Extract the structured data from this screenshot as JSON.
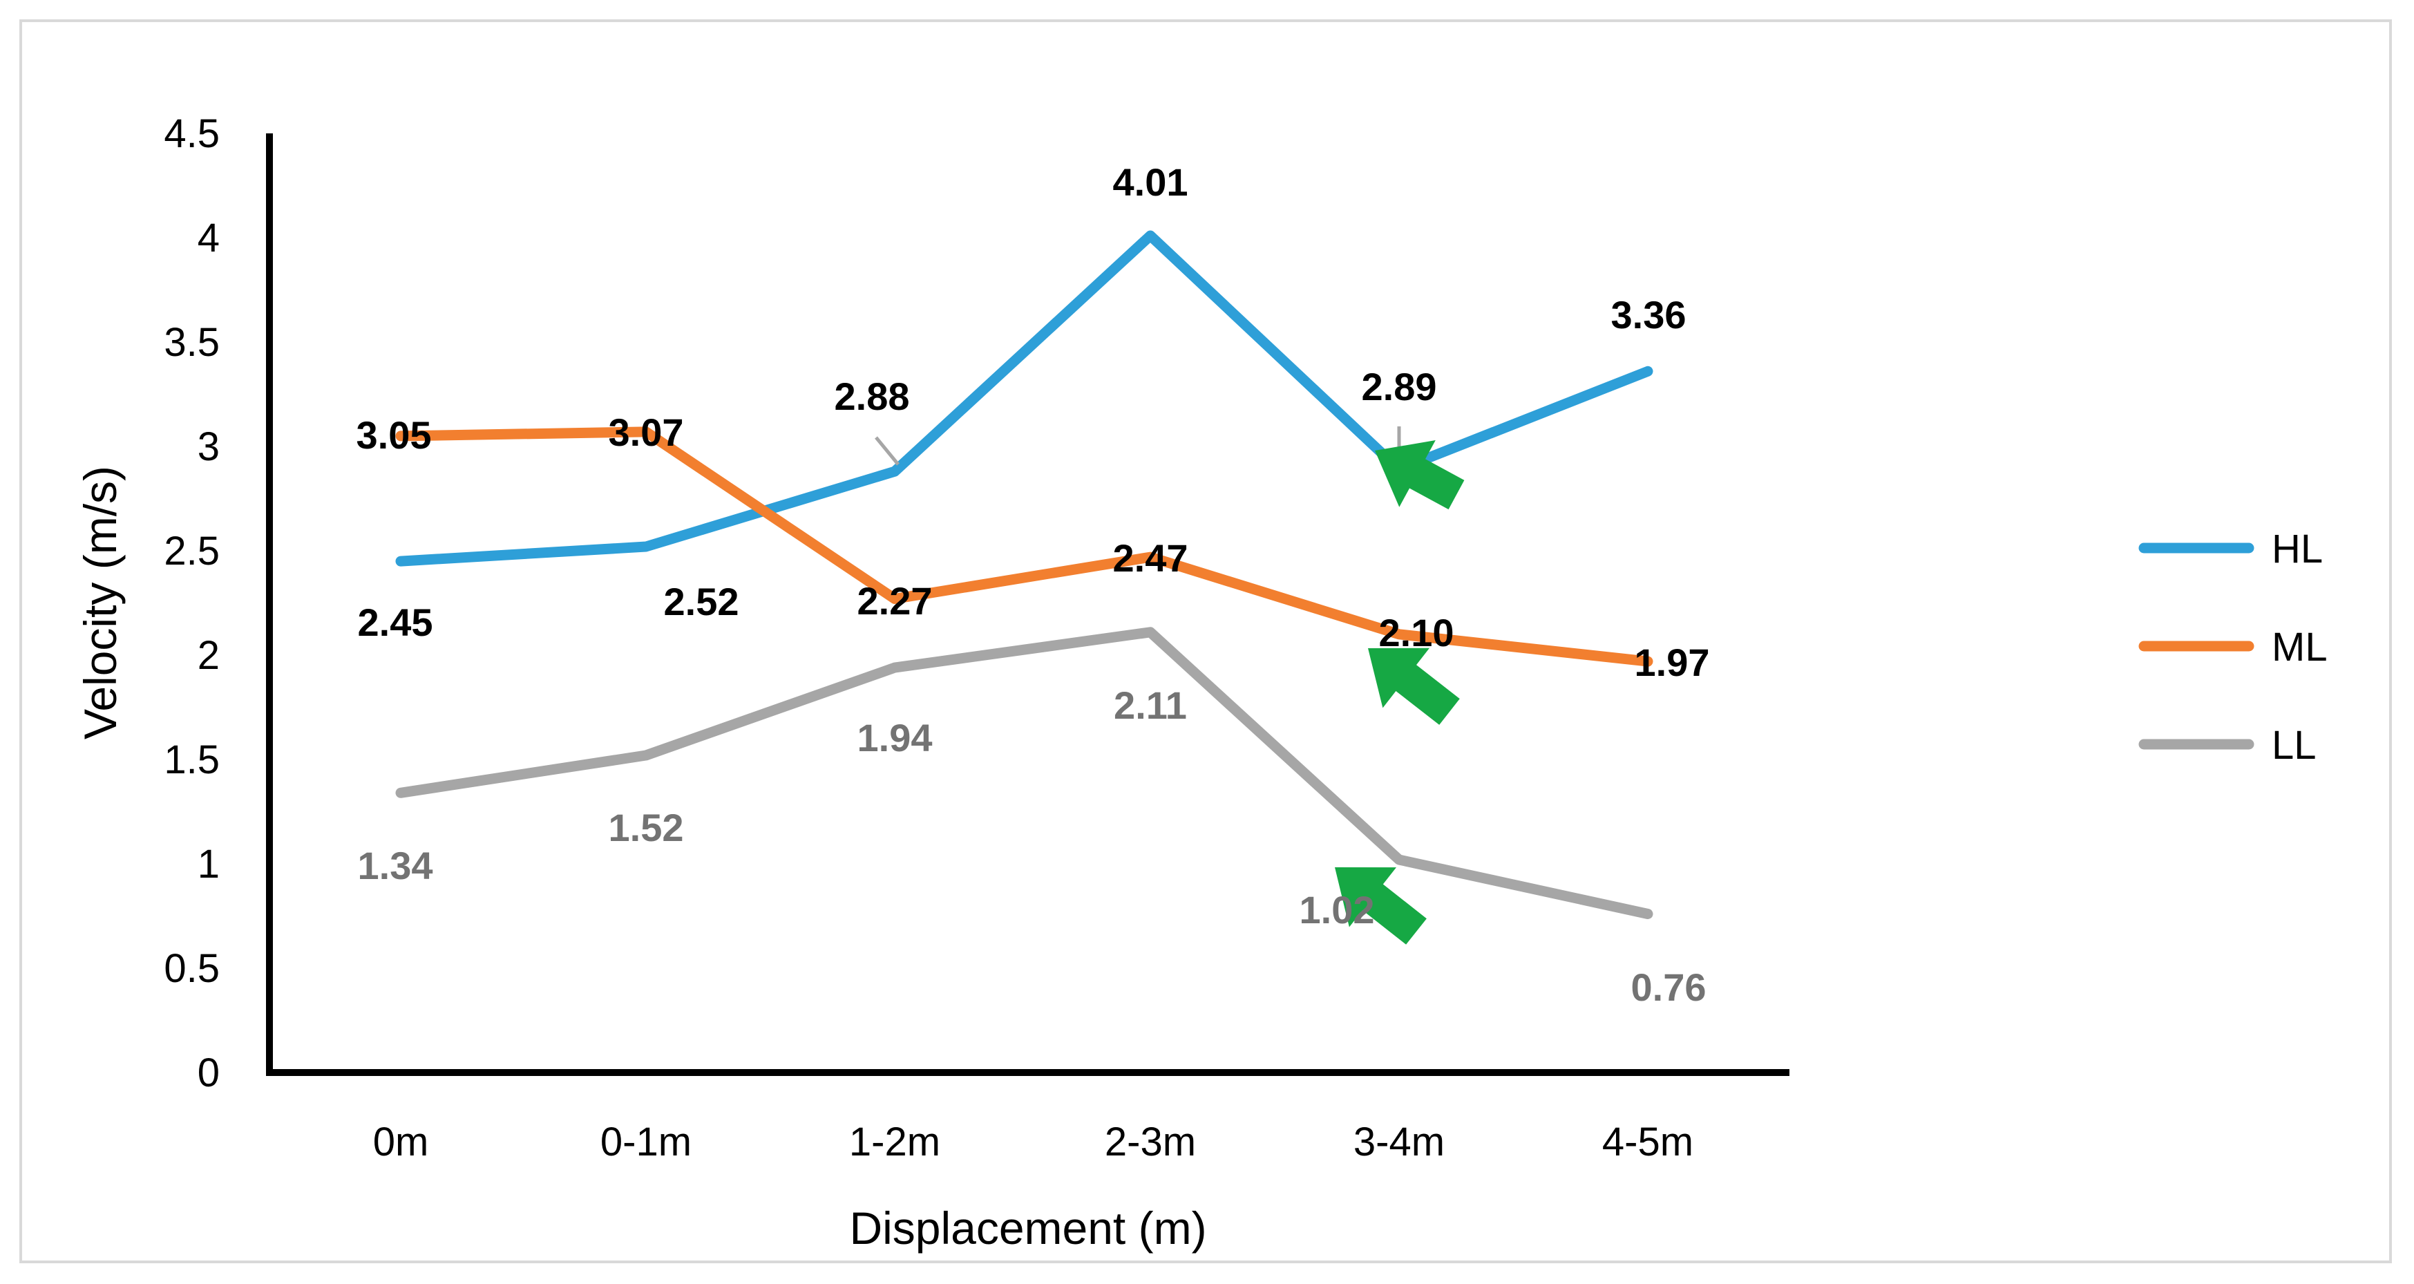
{
  "chart_data": {
    "type": "line",
    "xlabel": "Displacement (m)",
    "ylabel": "Velocity (m/s)",
    "categories": [
      "0m",
      "0-1m",
      "1-2m",
      "2-3m",
      "3-4m",
      "4-5m"
    ],
    "y_ticks": [
      "0",
      "0.5",
      "1",
      "1.5",
      "2",
      "2.5",
      "3",
      "3.5",
      "4",
      "4.5"
    ],
    "ylim": [
      0,
      4.5
    ],
    "grid": false,
    "legend_position": "right",
    "series": [
      {
        "name": "HL",
        "color": "#2e9fd8",
        "values": [
          2.45,
          2.52,
          2.88,
          4.01,
          2.89,
          3.36
        ],
        "labels": [
          "2.45",
          "2.52",
          "2.88",
          "4.01",
          "2.89",
          "3.36"
        ],
        "label_color": "#000000"
      },
      {
        "name": "ML",
        "color": "#f27f2f",
        "values": [
          3.05,
          3.07,
          2.27,
          2.47,
          2.1,
          1.97
        ],
        "labels": [
          "3.05",
          "3.07",
          "2.27",
          "2.47",
          "2.10",
          "1.97"
        ],
        "label_color": "#000000"
      },
      {
        "name": "LL",
        "color": "#a6a6a6",
        "values": [
          1.34,
          1.52,
          1.94,
          2.11,
          1.02,
          0.76
        ],
        "labels": [
          "1.34",
          "1.52",
          "1.94",
          "2.11",
          "1.02",
          "0.76"
        ],
        "label_color": "#737373"
      }
    ],
    "annotations": {
      "arrow_color": "#16a844",
      "arrows_point_to": [
        "HL at 3-4m",
        "ML at 3-4m",
        "LL at 3-4m"
      ]
    }
  }
}
